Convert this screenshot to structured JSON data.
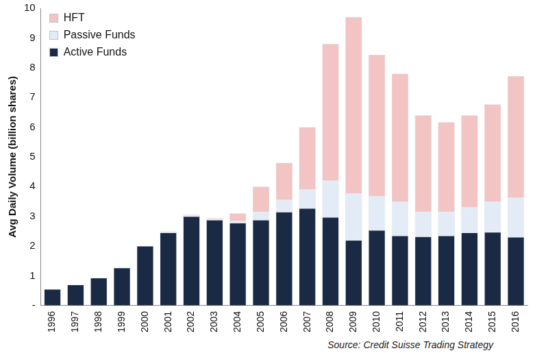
{
  "chart_data": {
    "type": "bar",
    "y_label": "Avg Daily Volume (billion shares)",
    "annotation": "Source: Credit Suisse Trading Strategy",
    "categories": [
      "1996",
      "1997",
      "1998",
      "1999",
      "2000",
      "2001",
      "2002",
      "2003",
      "2004",
      "2005",
      "2006",
      "2007",
      "2008",
      "2009",
      "2010",
      "2011",
      "2012",
      "2013",
      "2014",
      "2015",
      "2016"
    ],
    "series": [
      {
        "name": "Active Funds",
        "color": "#1b2a44",
        "values": [
          0.55,
          0.7,
          0.93,
          1.27,
          2.0,
          2.45,
          3.0,
          2.88,
          2.78,
          2.88,
          3.15,
          3.27,
          2.97,
          2.2,
          2.53,
          2.35,
          2.32,
          2.35,
          2.45,
          2.47,
          2.3
        ]
      },
      {
        "name": "Passive Funds",
        "color": "#e3ecf6",
        "values": [
          0,
          0,
          0,
          0,
          0,
          0.05,
          0.05,
          0.05,
          0.07,
          0.27,
          0.4,
          0.63,
          1.23,
          1.57,
          1.15,
          1.15,
          0.83,
          0.8,
          0.85,
          1.03,
          1.32
        ]
      },
      {
        "name": "HFT",
        "color": "#f2c4c4",
        "values": [
          0,
          0,
          0,
          0,
          0,
          0,
          0.02,
          0.02,
          0.25,
          0.85,
          1.25,
          2.1,
          4.6,
          5.93,
          4.75,
          4.3,
          3.25,
          3.02,
          3.1,
          3.27,
          4.1
        ]
      }
    ],
    "ylim": [
      0,
      10
    ],
    "yticks": [
      {
        "value": 0,
        "label": "-"
      },
      1,
      2,
      3,
      4,
      5,
      6,
      7,
      8,
      9,
      10
    ],
    "stacked": true,
    "grid": false,
    "legend": "upper left"
  }
}
